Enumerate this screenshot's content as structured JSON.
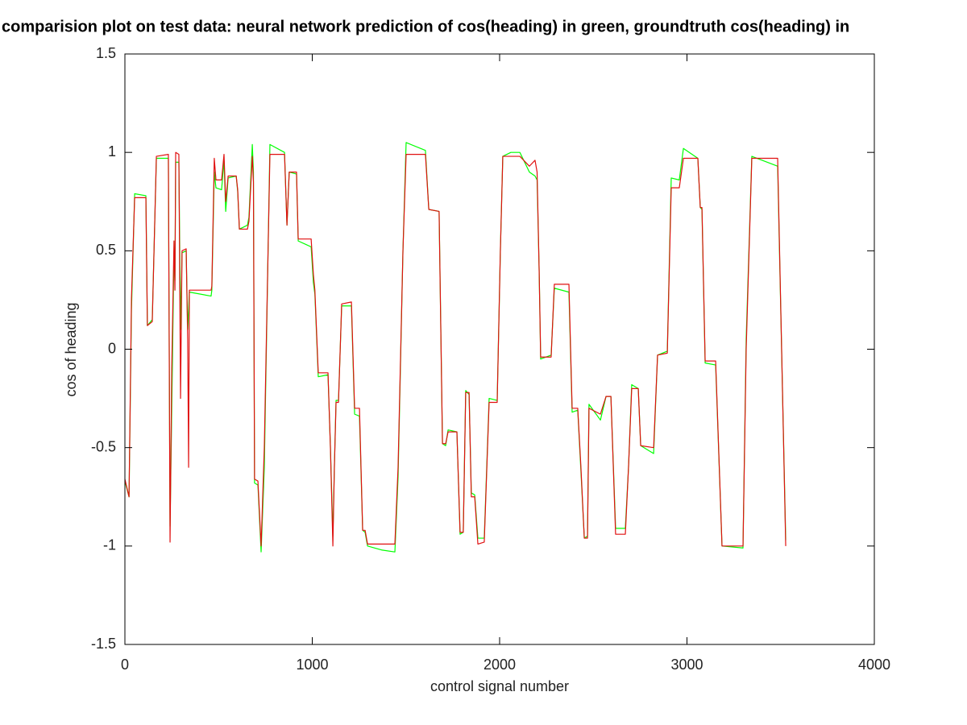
{
  "chart_data": {
    "type": "line",
    "title": "comparision plot on test data: neural network prediction of cos(heading) in green, groundtruth cos(heading) in",
    "xlabel": "control signal number",
    "ylabel": "cos of heading",
    "xlim": [
      0,
      4000
    ],
    "xticks": [
      0,
      1000,
      2000,
      3000,
      4000
    ],
    "ylim": [
      -1.5,
      1.5
    ],
    "yticks": [
      -1.5,
      -1,
      -0.5,
      0,
      0.5,
      1,
      1.5
    ],
    "grid": false,
    "x": [
      0,
      22,
      35,
      52,
      112,
      120,
      146,
      168,
      232,
      241,
      250,
      262,
      267,
      271,
      288,
      297,
      305,
      327,
      335,
      340,
      344,
      460,
      464,
      477,
      486,
      516,
      529,
      538,
      551,
      594,
      602,
      611,
      654,
      662,
      680,
      686,
      692,
      710,
      727,
      744,
      774,
      852,
      865,
      877,
      916,
      925,
      994,
      1006,
      1014,
      1032,
      1084,
      1097,
      1110,
      1118,
      1127,
      1140,
      1157,
      1209,
      1226,
      1252,
      1269,
      1282,
      1295,
      1370,
      1441,
      1458,
      1484,
      1501,
      1604,
      1622,
      1677,
      1695,
      1712,
      1725,
      1772,
      1789,
      1806,
      1819,
      1837,
      1849,
      1867,
      1884,
      1918,
      1944,
      1987,
      2004,
      2017,
      2060,
      2108,
      2159,
      2189,
      2200,
      2211,
      2219,
      2275,
      2292,
      2370,
      2387,
      2417,
      2434,
      2452,
      2469,
      2477,
      2538,
      2568,
      2594,
      2619,
      2671,
      2688,
      2705,
      2740,
      2753,
      2822,
      2843,
      2895,
      2916,
      2959,
      2981,
      3058,
      3071,
      3080,
      3097,
      3153,
      3187,
      3299,
      3316,
      3346,
      3484,
      3527
    ],
    "series": [
      {
        "name": "neural network prediction",
        "color": "#00ff00",
        "values": [
          -0.67,
          -0.75,
          0.2,
          0.79,
          0.78,
          0.12,
          0.15,
          0.97,
          0.97,
          -0.9,
          -0.3,
          0.5,
          0.35,
          0.95,
          0.95,
          0.1,
          0.49,
          0.5,
          0.1,
          0.2,
          0.29,
          0.27,
          0.3,
          0.9,
          0.82,
          0.81,
          0.96,
          0.7,
          0.87,
          0.88,
          0.8,
          0.61,
          0.63,
          0.67,
          1.04,
          0.9,
          -0.68,
          -0.69,
          -1.03,
          -0.6,
          1.04,
          1.0,
          0.63,
          0.9,
          0.89,
          0.55,
          0.52,
          0.34,
          0.28,
          -0.14,
          -0.13,
          -0.5,
          -0.95,
          -0.6,
          -0.26,
          -0.26,
          0.22,
          0.22,
          -0.33,
          -0.34,
          -0.92,
          -0.93,
          -1.0,
          -1.02,
          -1.03,
          -0.65,
          0.5,
          1.05,
          1.01,
          0.71,
          0.7,
          -0.48,
          -0.49,
          -0.41,
          -0.42,
          -0.94,
          -0.93,
          -0.21,
          -0.23,
          -0.73,
          -0.74,
          -0.96,
          -0.96,
          -0.25,
          -0.26,
          0.5,
          0.98,
          1.0,
          1.0,
          0.9,
          0.88,
          0.86,
          0.4,
          -0.05,
          -0.03,
          0.31,
          0.29,
          -0.32,
          -0.31,
          -0.62,
          -0.96,
          -0.95,
          -0.28,
          -0.36,
          -0.24,
          -0.24,
          -0.91,
          -0.91,
          -0.6,
          -0.18,
          -0.2,
          -0.49,
          -0.53,
          -0.03,
          -0.01,
          0.87,
          0.86,
          1.02,
          0.97,
          0.72,
          0.71,
          -0.07,
          -0.08,
          -1.0,
          -1.01,
          0.05,
          0.98,
          0.93,
          -0.97
        ]
      },
      {
        "name": "groundtruth",
        "color": "#e01010",
        "values": [
          -0.66,
          -0.75,
          0.26,
          0.77,
          0.77,
          0.12,
          0.14,
          0.98,
          0.99,
          -0.98,
          -0.1,
          0.55,
          0.3,
          1.0,
          0.99,
          -0.25,
          0.5,
          0.51,
          0.05,
          -0.6,
          0.3,
          0.3,
          0.32,
          0.97,
          0.86,
          0.86,
          0.99,
          0.75,
          0.88,
          0.88,
          0.81,
          0.61,
          0.61,
          0.65,
          0.98,
          0.85,
          -0.66,
          -0.67,
          -1.0,
          -0.5,
          0.99,
          0.99,
          0.63,
          0.9,
          0.9,
          0.56,
          0.56,
          0.38,
          0.3,
          -0.12,
          -0.12,
          -0.5,
          -1.0,
          -0.6,
          -0.27,
          -0.27,
          0.23,
          0.24,
          -0.3,
          -0.3,
          -0.92,
          -0.92,
          -0.99,
          -0.99,
          -0.99,
          -0.6,
          0.5,
          0.99,
          0.99,
          0.71,
          0.7,
          -0.48,
          -0.48,
          -0.42,
          -0.42,
          -0.93,
          -0.93,
          -0.22,
          -0.22,
          -0.75,
          -0.75,
          -0.99,
          -0.98,
          -0.27,
          -0.27,
          0.5,
          0.98,
          0.98,
          0.98,
          0.93,
          0.96,
          0.9,
          0.4,
          -0.04,
          -0.04,
          0.33,
          0.33,
          -0.3,
          -0.3,
          -0.6,
          -0.96,
          -0.96,
          -0.3,
          -0.33,
          -0.24,
          -0.24,
          -0.94,
          -0.94,
          -0.6,
          -0.2,
          -0.2,
          -0.49,
          -0.5,
          -0.03,
          -0.02,
          0.82,
          0.82,
          0.97,
          0.97,
          0.72,
          0.72,
          -0.06,
          -0.06,
          -1.0,
          -1.0,
          0.0,
          0.97,
          0.97,
          -1.0
        ]
      }
    ]
  }
}
